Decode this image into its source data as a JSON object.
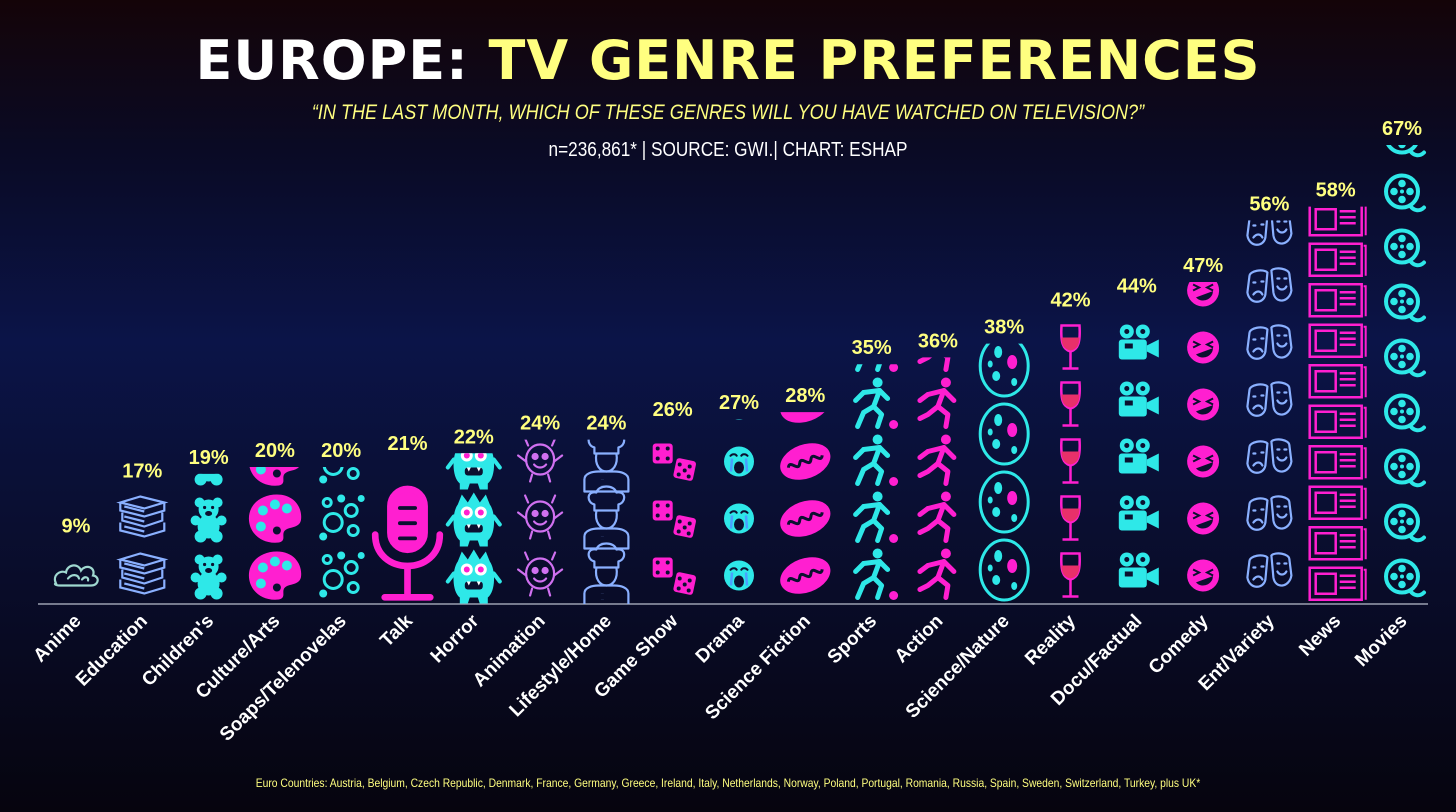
{
  "header": {
    "title_part1": "EUROPE:",
    "title_part2": "TV GENRE PREFERENCES",
    "subtitle": "“IN THE LAST MONTH, WHICH OF THESE GENRES WILL YOU HAVE WATCHED ON TELEVISION?”",
    "source_line": "n=236,861* | SOURCE: GWI.| CHART: ESHAP"
  },
  "footnote": "Euro Countries: Austria, Belgium, Czech Republic, Denmark, France, Germany, Greece, Ireland, Italy, Netherlands, Norway, Poland, Portugal, Romania, Russia, Spain, Sweden, Switzerland, Turkey, plus UK*",
  "colors": {
    "title_white": "#ffffff",
    "title_yellow": "#ffff80",
    "cyan": "#2ee8e8",
    "magenta": "#ff1fd0",
    "purple": "#d070f0",
    "periwinkle": "#8ab0ff",
    "pale_teal": "#9fd8d0",
    "baseline": "#9aa0b0"
  },
  "chart_data": {
    "type": "bar",
    "unit": "%",
    "ylim": [
      0,
      67
    ],
    "categories": [
      "Anime",
      "Education",
      "Children's",
      "Culture/Arts",
      "Soaps/Telenovelas",
      "Talk",
      "Horror",
      "Animation",
      "Lifestyle/Home",
      "Game Show",
      "Drama",
      "Science Fiction",
      "Sports",
      "Action",
      "Science/Nature",
      "Reality",
      "Docu/Factual",
      "Comedy",
      "Ent/Variety",
      "News",
      "Movies"
    ],
    "values": [
      9,
      17,
      19,
      20,
      20,
      21,
      22,
      24,
      24,
      26,
      27,
      28,
      35,
      36,
      38,
      42,
      44,
      47,
      56,
      58,
      67
    ],
    "value_labels": [
      "9%",
      "17%",
      "19%",
      "20%",
      "20%",
      "21%",
      "22%",
      "24%",
      "24%",
      "26%",
      "27%",
      "28%",
      "35%",
      "36%",
      "38%",
      "42%",
      "44%",
      "47%",
      "56%",
      "58%",
      "67%"
    ],
    "icons": [
      "cloud-icon",
      "books-icon",
      "teddy-bear-icon",
      "palette-icon",
      "bubbles-icon",
      "microphone-icon",
      "monster-icon",
      "cute-monster-icon",
      "chef-icon",
      "dice-icon",
      "crying-face-icon",
      "mitochondria-icon",
      "runner-ball-icon",
      "runner-icon",
      "egg-icon",
      "wine-glass-icon",
      "movie-camera-icon",
      "laughing-face-icon",
      "theater-masks-icon",
      "newspaper-icon",
      "film-reel-icon"
    ],
    "icon_colors": [
      "#9fd8d0",
      "#8ab0ff",
      "#2ee8e8",
      "#ff1fd0",
      "#2ee8e8",
      "#ff1fd0",
      "#2ee8e8",
      "#d070f0",
      "#8ab0ff",
      "#ff1fd0",
      "#2ee8e8",
      "#ff1fd0",
      "#2ee8e8",
      "#ff1fd0",
      "#2ee8e8",
      "#ff1fd0",
      "#2ee8e8",
      "#ff1fd0",
      "#8ab0ff",
      "#ff1fd0",
      "#2ee8e8"
    ],
    "grid": false,
    "legend": "none"
  }
}
